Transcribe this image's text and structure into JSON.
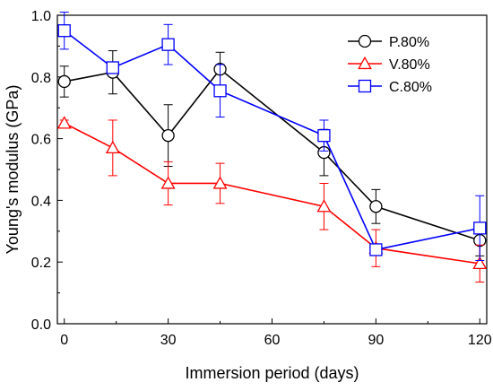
{
  "chart_data": {
    "type": "line",
    "title": "",
    "xlabel": "Immersion period (days)",
    "ylabel": "Young's modulus (GPa)",
    "xlim": [
      -2,
      122
    ],
    "ylim": [
      0.0,
      1.0
    ],
    "xticks": [
      0,
      30,
      60,
      90,
      120
    ],
    "xtick_labels": [
      "0",
      "30",
      "60",
      "90",
      "120"
    ],
    "yticks": [
      0.0,
      0.2,
      0.4,
      0.6,
      0.8,
      1.0
    ],
    "ytick_labels": [
      "0.0",
      "0.2",
      "0.4",
      "0.6",
      "0.8",
      "1.0"
    ],
    "legend_position": "top-right",
    "grid": false,
    "series": [
      {
        "name": "P.80%",
        "color": "#000000",
        "marker": "circle",
        "x": [
          0,
          14,
          30,
          45,
          75,
          90,
          120
        ],
        "y": [
          0.785,
          0.815,
          0.61,
          0.825,
          0.555,
          0.38,
          0.27
        ],
        "err": [
          0.05,
          0.07,
          0.1,
          0.055,
          0.075,
          0.055,
          0.05
        ]
      },
      {
        "name": "V.80%",
        "color": "#ff0000",
        "marker": "triangle",
        "x": [
          0,
          14,
          30,
          45,
          75,
          90,
          120
        ],
        "y": [
          0.65,
          0.57,
          0.455,
          0.455,
          0.38,
          0.245,
          0.195
        ],
        "err": [
          0.01,
          0.09,
          0.07,
          0.065,
          0.075,
          0.06,
          0.06
        ]
      },
      {
        "name": "C.80%",
        "color": "#0000ff",
        "marker": "square",
        "x": [
          0,
          14,
          30,
          45,
          75,
          90,
          120
        ],
        "y": [
          0.95,
          0.83,
          0.905,
          0.755,
          0.61,
          0.24,
          0.31
        ],
        "err": [
          0.06,
          0.01,
          0.065,
          0.085,
          0.05,
          0.01,
          0.105
        ]
      }
    ]
  }
}
